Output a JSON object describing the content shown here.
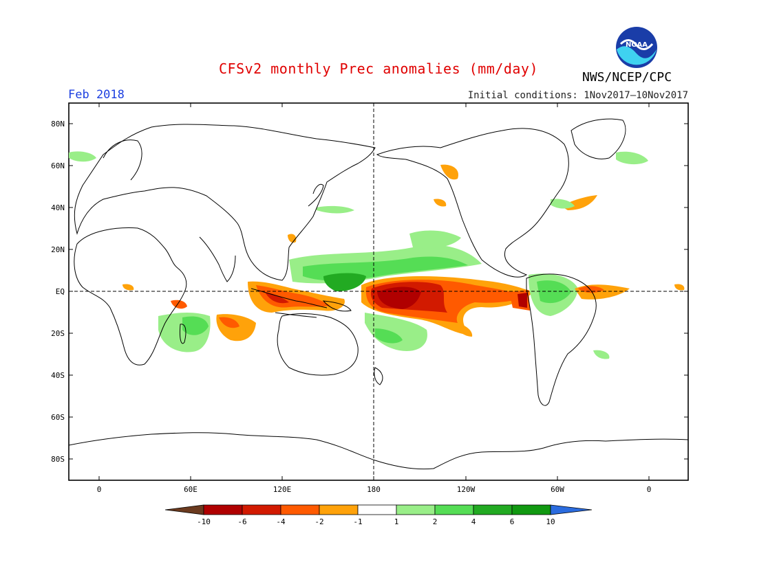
{
  "header": {
    "title": "CFSv2 monthly Prec anomalies (mm/day)",
    "agency": "NWS/NCEP/CPC",
    "month": "Feb 2018",
    "initial_conditions": "Initial conditions: 1Nov2017–10Nov2017",
    "colors": {
      "title": "#e00000",
      "month": "#1c3fe0"
    }
  },
  "logo": {
    "name": "noaa-logo",
    "text": "NOAA"
  },
  "axes": {
    "lat_labels": [
      "80N",
      "60N",
      "40N",
      "20N",
      "EQ",
      "20S",
      "40S",
      "60S",
      "80S"
    ],
    "lon_labels": [
      "0",
      "60E",
      "120E",
      "180",
      "120W",
      "60W",
      "0"
    ]
  },
  "colorbar": {
    "labels": [
      "-10",
      "-6",
      "-4",
      "-2",
      "-1",
      "1",
      "2",
      "4",
      "6",
      "10"
    ],
    "colors": [
      "#6b3a1f",
      "#b00000",
      "#d21a00",
      "#ff5a00",
      "#ffa20a",
      "#ffffff",
      "#99ee88",
      "#55dd55",
      "#22aa22",
      "#119911",
      "#2b6cdf"
    ]
  }
}
